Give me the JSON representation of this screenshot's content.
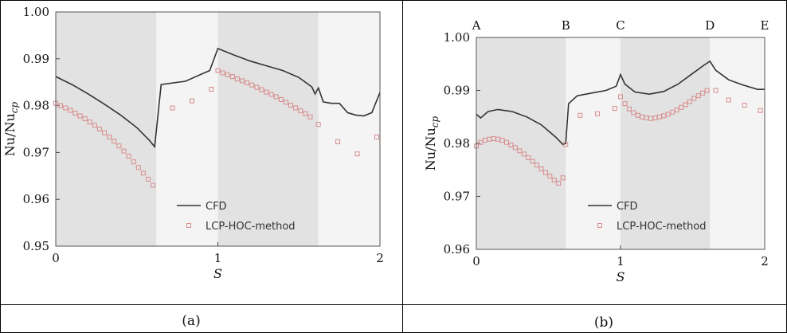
{
  "chart_data": [
    {
      "type": "line",
      "panel_label": "(a)",
      "xlabel": "S",
      "ylabel": "Nu/Nu",
      "ylabel_sub": "cp",
      "xlim": [
        0,
        2
      ],
      "ylim": [
        0.95,
        1.0
      ],
      "x_ticks": [
        "0",
        "1",
        "2"
      ],
      "y_ticks": [
        "0.95",
        "0.96",
        "0.97",
        "0.98",
        "0.99",
        "1.00"
      ],
      "shaded_regions": [
        [
          0,
          0.62
        ],
        [
          1.0,
          1.62
        ]
      ],
      "legend": {
        "position": "bottom-right",
        "entries": [
          "CFD",
          "LCP-HOC-method"
        ]
      },
      "series": [
        {
          "name": "CFD",
          "style": "line",
          "color": "#333333",
          "x": [
            0,
            0.1,
            0.2,
            0.3,
            0.4,
            0.5,
            0.58,
            0.61,
            0.62,
            0.65,
            0.8,
            0.95,
            1.0,
            1.1,
            1.2,
            1.3,
            1.4,
            1.5,
            1.58,
            1.6,
            1.62,
            1.65,
            1.7,
            1.75,
            1.8,
            1.85,
            1.9,
            1.95,
            2.0
          ],
          "y": [
            0.9862,
            0.9845,
            0.9825,
            0.9803,
            0.978,
            0.9753,
            0.9725,
            0.9712,
            0.9745,
            0.9845,
            0.9852,
            0.9875,
            0.9922,
            0.9908,
            0.9895,
            0.9885,
            0.9875,
            0.986,
            0.984,
            0.9825,
            0.9838,
            0.9808,
            0.9805,
            0.9805,
            0.9785,
            0.978,
            0.9778,
            0.9785,
            0.9828
          ]
        },
        {
          "name": "LCP-HOC-method",
          "style": "markers",
          "color": "#d98c8c",
          "x": [
            0,
            0.03,
            0.06,
            0.09,
            0.12,
            0.15,
            0.18,
            0.21,
            0.24,
            0.27,
            0.3,
            0.33,
            0.36,
            0.39,
            0.42,
            0.45,
            0.48,
            0.51,
            0.54,
            0.57,
            0.6,
            0.72,
            0.84,
            0.96,
            1.0,
            1.03,
            1.06,
            1.09,
            1.12,
            1.15,
            1.18,
            1.21,
            1.24,
            1.27,
            1.3,
            1.33,
            1.36,
            1.39,
            1.42,
            1.45,
            1.48,
            1.51,
            1.54,
            1.57,
            1.62,
            1.74,
            1.86,
            1.98
          ],
          "y": [
            0.9805,
            0.98,
            0.9795,
            0.979,
            0.9784,
            0.9778,
            0.9772,
            0.9765,
            0.9758,
            0.975,
            0.9742,
            0.9733,
            0.9724,
            0.9714,
            0.9703,
            0.9692,
            0.968,
            0.9668,
            0.9656,
            0.9643,
            0.963,
            0.9795,
            0.981,
            0.9835,
            0.9875,
            0.987,
            0.9866,
            0.9862,
            0.9857,
            0.9853,
            0.9849,
            0.9844,
            0.9839,
            0.9834,
            0.9829,
            0.9824,
            0.9819,
            0.9813,
            0.9807,
            0.9801,
            0.9795,
            0.9789,
            0.9783,
            0.9776,
            0.976,
            0.9723,
            0.9697,
            0.9733
          ]
        }
      ]
    },
    {
      "type": "line",
      "panel_label": "(b)",
      "xlabel": "S",
      "ylabel": "Nu/Nu",
      "ylabel_sub": "cp",
      "xlim": [
        0,
        2
      ],
      "ylim": [
        0.96,
        1.0
      ],
      "x_ticks": [
        "0",
        "1",
        "2"
      ],
      "y_ticks": [
        "0.96",
        "0.97",
        "0.98",
        "0.99",
        "1.00"
      ],
      "shaded_regions": [
        [
          0,
          0.62
        ],
        [
          1.0,
          1.62
        ]
      ],
      "point_labels": [
        {
          "text": "A",
          "x": 0
        },
        {
          "text": "B",
          "x": 0.62
        },
        {
          "text": "C",
          "x": 1.0
        },
        {
          "text": "D",
          "x": 1.62
        },
        {
          "text": "E",
          "x": 2.0
        }
      ],
      "legend": {
        "position": "bottom-right",
        "entries": [
          "CFD",
          "LCP-HOC-method"
        ]
      },
      "series": [
        {
          "name": "CFD",
          "style": "line",
          "color": "#333333",
          "x": [
            0,
            0.03,
            0.08,
            0.15,
            0.25,
            0.35,
            0.45,
            0.55,
            0.6,
            0.62,
            0.64,
            0.7,
            0.8,
            0.9,
            0.97,
            1.0,
            1.03,
            1.1,
            1.2,
            1.3,
            1.4,
            1.5,
            1.58,
            1.62,
            1.66,
            1.75,
            1.85,
            1.95,
            2.0
          ],
          "y": [
            0.9855,
            0.9848,
            0.986,
            0.9864,
            0.986,
            0.985,
            0.9835,
            0.9812,
            0.9798,
            0.98,
            0.9875,
            0.989,
            0.9895,
            0.99,
            0.9908,
            0.993,
            0.9912,
            0.9897,
            0.9893,
            0.9898,
            0.9912,
            0.9932,
            0.9948,
            0.9955,
            0.9938,
            0.992,
            0.991,
            0.9902,
            0.9902
          ]
        },
        {
          "name": "LCP-HOC-method",
          "style": "markers",
          "color": "#d98c8c",
          "x": [
            0,
            0.03,
            0.06,
            0.09,
            0.12,
            0.15,
            0.18,
            0.21,
            0.24,
            0.27,
            0.3,
            0.33,
            0.36,
            0.39,
            0.42,
            0.45,
            0.48,
            0.51,
            0.54,
            0.57,
            0.6,
            0.62,
            0.72,
            0.84,
            0.96,
            1.0,
            1.03,
            1.06,
            1.09,
            1.12,
            1.15,
            1.18,
            1.21,
            1.24,
            1.27,
            1.3,
            1.33,
            1.36,
            1.39,
            1.42,
            1.45,
            1.48,
            1.51,
            1.54,
            1.57,
            1.6,
            1.66,
            1.75,
            1.86,
            1.97
          ],
          "y": [
            0.9795,
            0.9802,
            0.9806,
            0.9808,
            0.9809,
            0.9808,
            0.9806,
            0.9802,
            0.9797,
            0.9792,
            0.9786,
            0.978,
            0.9773,
            0.9766,
            0.9759,
            0.9752,
            0.9745,
            0.9738,
            0.9731,
            0.9725,
            0.9735,
            0.9798,
            0.9853,
            0.9856,
            0.9866,
            0.9888,
            0.9875,
            0.9865,
            0.9858,
            0.9853,
            0.985,
            0.9848,
            0.9847,
            0.9848,
            0.985,
            0.9852,
            0.9855,
            0.9859,
            0.9863,
            0.9868,
            0.9873,
            0.9879,
            0.9885,
            0.989,
            0.9895,
            0.99,
            0.99,
            0.9882,
            0.9872,
            0.9862
          ]
        }
      ]
    }
  ]
}
